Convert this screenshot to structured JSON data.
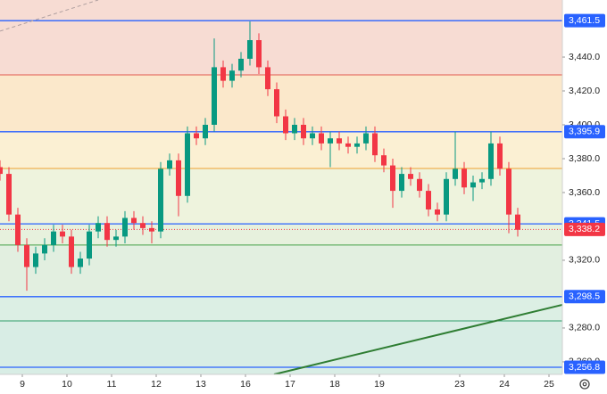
{
  "chart_data": {
    "type": "candlestick",
    "xlim": [
      -0.5,
      12.1
    ],
    "ylim": [
      3252.6,
      3473.7
    ],
    "xticks": [
      {
        "value": 0,
        "label": "9"
      },
      {
        "value": 1,
        "label": "10"
      },
      {
        "value": 2,
        "label": "11"
      },
      {
        "value": 3,
        "label": "12"
      },
      {
        "value": 4,
        "label": "13"
      },
      {
        "value": 5,
        "label": "16"
      },
      {
        "value": 6,
        "label": "17"
      },
      {
        "value": 7,
        "label": "18"
      },
      {
        "value": 8,
        "label": "19"
      },
      {
        "value": 9.8,
        "label": "23"
      },
      {
        "value": 10.8,
        "label": "24"
      },
      {
        "value": 11.8,
        "label": "25"
      }
    ],
    "yticks": [
      {
        "value": 3260,
        "label": "3,260.0"
      },
      {
        "value": 3280,
        "label": "3,280.0"
      },
      {
        "value": 3320,
        "label": "3,320.0"
      },
      {
        "value": 3360,
        "label": "3,360.0"
      },
      {
        "value": 3380,
        "label": "3,380.0"
      },
      {
        "value": 3400,
        "label": "3,400.0"
      },
      {
        "value": 3420,
        "label": "3,420.0"
      },
      {
        "value": 3440,
        "label": "3,440.0"
      }
    ],
    "up_color": "#089981",
    "down_color": "#f23645",
    "x": [
      -0.5,
      -0.3,
      -0.1,
      0.1,
      0.3,
      0.5,
      0.7,
      0.9,
      1.1,
      1.3,
      1.5,
      1.7,
      1.9,
      2.1,
      2.3,
      2.5,
      2.7,
      2.9,
      3.1,
      3.3,
      3.5,
      3.7,
      3.9,
      4.1,
      4.3,
      4.5,
      4.7,
      4.9,
      5.1,
      5.3,
      5.5,
      5.7,
      5.9,
      6.1,
      6.3,
      6.5,
      6.7,
      6.9,
      7.1,
      7.3,
      7.5,
      7.7,
      7.9,
      8.1,
      8.3,
      8.5,
      8.7,
      8.9,
      9.1,
      9.3,
      9.5,
      9.7,
      9.9,
      10.1,
      10.3,
      10.5,
      10.7,
      10.9,
      11.1
    ],
    "open": [
      3375,
      3371,
      3347,
      3329,
      3316,
      3324,
      3329,
      3337,
      3334,
      3316,
      3321,
      3337,
      3342,
      3332,
      3334,
      3345,
      3342,
      3339,
      3337,
      3374,
      3379,
      3358,
      3395,
      3392,
      3400,
      3434,
      3426,
      3432,
      3439,
      3450,
      3434,
      3421,
      3405,
      3395,
      3400,
      3392,
      3395,
      3389,
      3392,
      3389,
      3387,
      3389,
      3395,
      3382,
      3376,
      3361,
      3371,
      3368,
      3361,
      3350,
      3347,
      3368,
      3374,
      3363,
      3366,
      3368,
      3389,
      3374,
      3347
    ],
    "high": [
      3379,
      3375,
      3351,
      3333,
      3328,
      3333,
      3341,
      3341,
      3338,
      3325,
      3341,
      3346,
      3346,
      3338,
      3349,
      3349,
      3346,
      3343,
      3378,
      3383,
      3383,
      3399,
      3399,
      3404,
      3451,
      3438,
      3436,
      3443,
      3461,
      3454,
      3438,
      3425,
      3409,
      3404,
      3404,
      3399,
      3399,
      3396,
      3396,
      3393,
      3393,
      3399,
      3399,
      3386,
      3380,
      3375,
      3375,
      3372,
      3365,
      3354,
      3372,
      3396,
      3378,
      3370,
      3372,
      3396,
      3393,
      3378,
      3351
    ],
    "low": [
      3367,
      3343,
      3325,
      3302,
      3312,
      3320,
      3325,
      3330,
      3312,
      3312,
      3317,
      3333,
      3328,
      3328,
      3330,
      3338,
      3335,
      3330,
      3333,
      3370,
      3346,
      3354,
      3388,
      3388,
      3396,
      3422,
      3422,
      3428,
      3435,
      3430,
      3417,
      3401,
      3391,
      3391,
      3388,
      3388,
      3385,
      3375,
      3385,
      3383,
      3383,
      3385,
      3378,
      3372,
      3351,
      3357,
      3364,
      3357,
      3346,
      3343,
      3343,
      3364,
      3359,
      3355,
      3362,
      3364,
      3370,
      3336,
      3334
    ],
    "close": [
      3371,
      3347,
      3329,
      3316,
      3324,
      3329,
      3337,
      3334,
      3316,
      3321,
      3337,
      3342,
      3332,
      3334,
      3345,
      3342,
      3339,
      3337,
      3374,
      3379,
      3358,
      3395,
      3392,
      3400,
      3434,
      3426,
      3432,
      3439,
      3450,
      3434,
      3421,
      3405,
      3395,
      3400,
      3392,
      3395,
      3389,
      3392,
      3389,
      3387,
      3389,
      3395,
      3382,
      3376,
      3361,
      3371,
      3368,
      3361,
      3350,
      3347,
      3368,
      3374,
      3363,
      3366,
      3368,
      3389,
      3374,
      3347,
      3338
    ],
    "levels": [
      {
        "value": 3461.5,
        "label": "3,461.5",
        "color": "#2962ff",
        "band": "#f7dcd3"
      },
      {
        "value": 3429.5,
        "color": "#e05a4f",
        "band": "#f7dcd3"
      },
      {
        "value": 3395.9,
        "label": "3,395.9",
        "color": "#2962ff",
        "band": "#fbe8cb"
      },
      {
        "value": 3374.2,
        "color": "#f0a030",
        "band": "#fbf0d3"
      },
      {
        "value": 3341.5,
        "label": "3,341.5",
        "color": "#2962ff",
        "band": "#eef3dd"
      },
      {
        "value": 3329,
        "color": "#43a047",
        "band": "#e7f1dd"
      },
      {
        "value": 3298.5,
        "label": "3,298.5",
        "color": "#2962ff",
        "band": "#e2efe0"
      },
      {
        "value": 3284.2,
        "color": "#2e9d6a",
        "band": "#dcefe4"
      },
      {
        "value": 3256.8,
        "label": "3,256.8",
        "color": "#2962ff",
        "band": "#d8ede5"
      }
    ],
    "current_price": {
      "value": 3338.2,
      "label": "3,338.2",
      "color": "#f23645"
    },
    "trendlines": [
      {
        "x": [
          5.64,
          12.1
        ],
        "y": [
          3252.6,
          3293.7
        ],
        "color": "#2e7d32",
        "dashed": false
      },
      {
        "x": [
          -0.5,
          1.7
        ],
        "y": [
          3455.3,
          3473.7
        ],
        "color": "#b0a0a0",
        "dashed": true
      }
    ]
  }
}
